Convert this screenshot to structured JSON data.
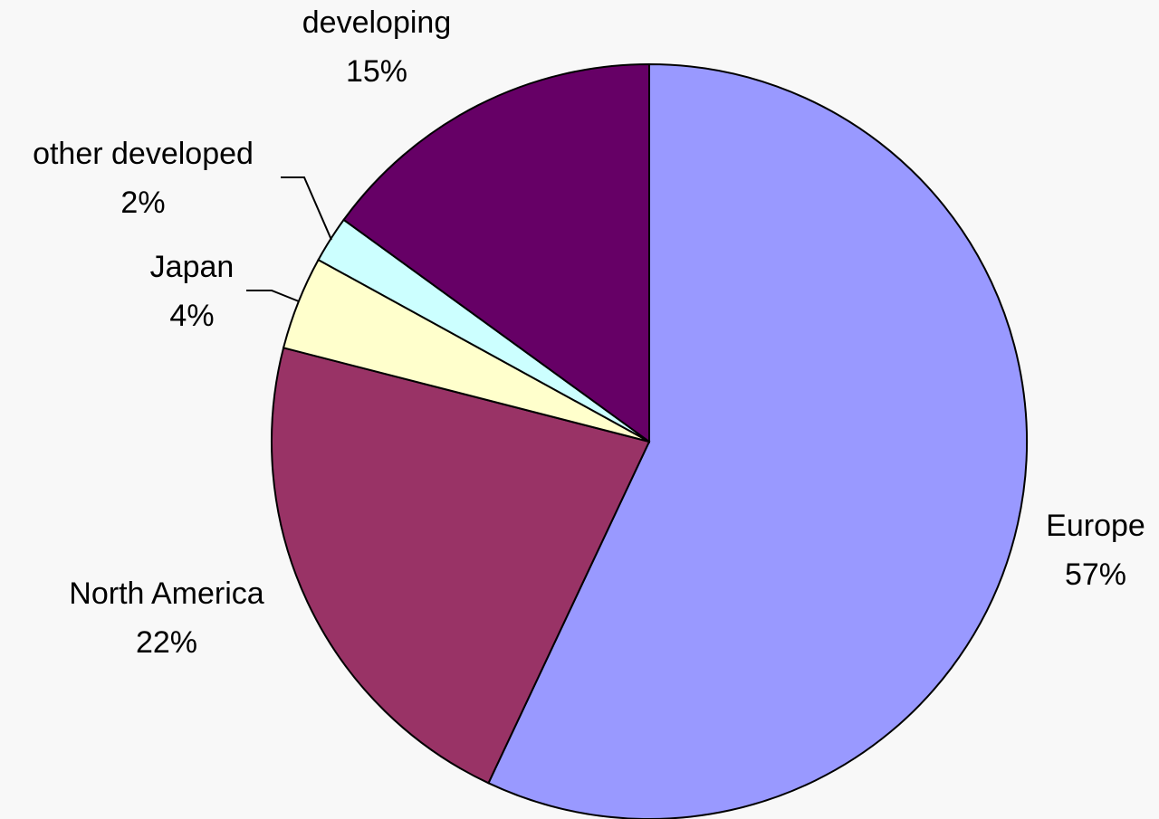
{
  "chart_data": {
    "type": "pie",
    "categories": [
      "Europe",
      "North America",
      "Japan",
      "other developed",
      "developing"
    ],
    "values": [
      57,
      22,
      4,
      2,
      15
    ],
    "value_labels": [
      "57%",
      "22%",
      "4%",
      "2%",
      "15%"
    ],
    "colors": [
      "#9999ff",
      "#993366",
      "#ffffcc",
      "#ccffff",
      "#660066"
    ]
  }
}
